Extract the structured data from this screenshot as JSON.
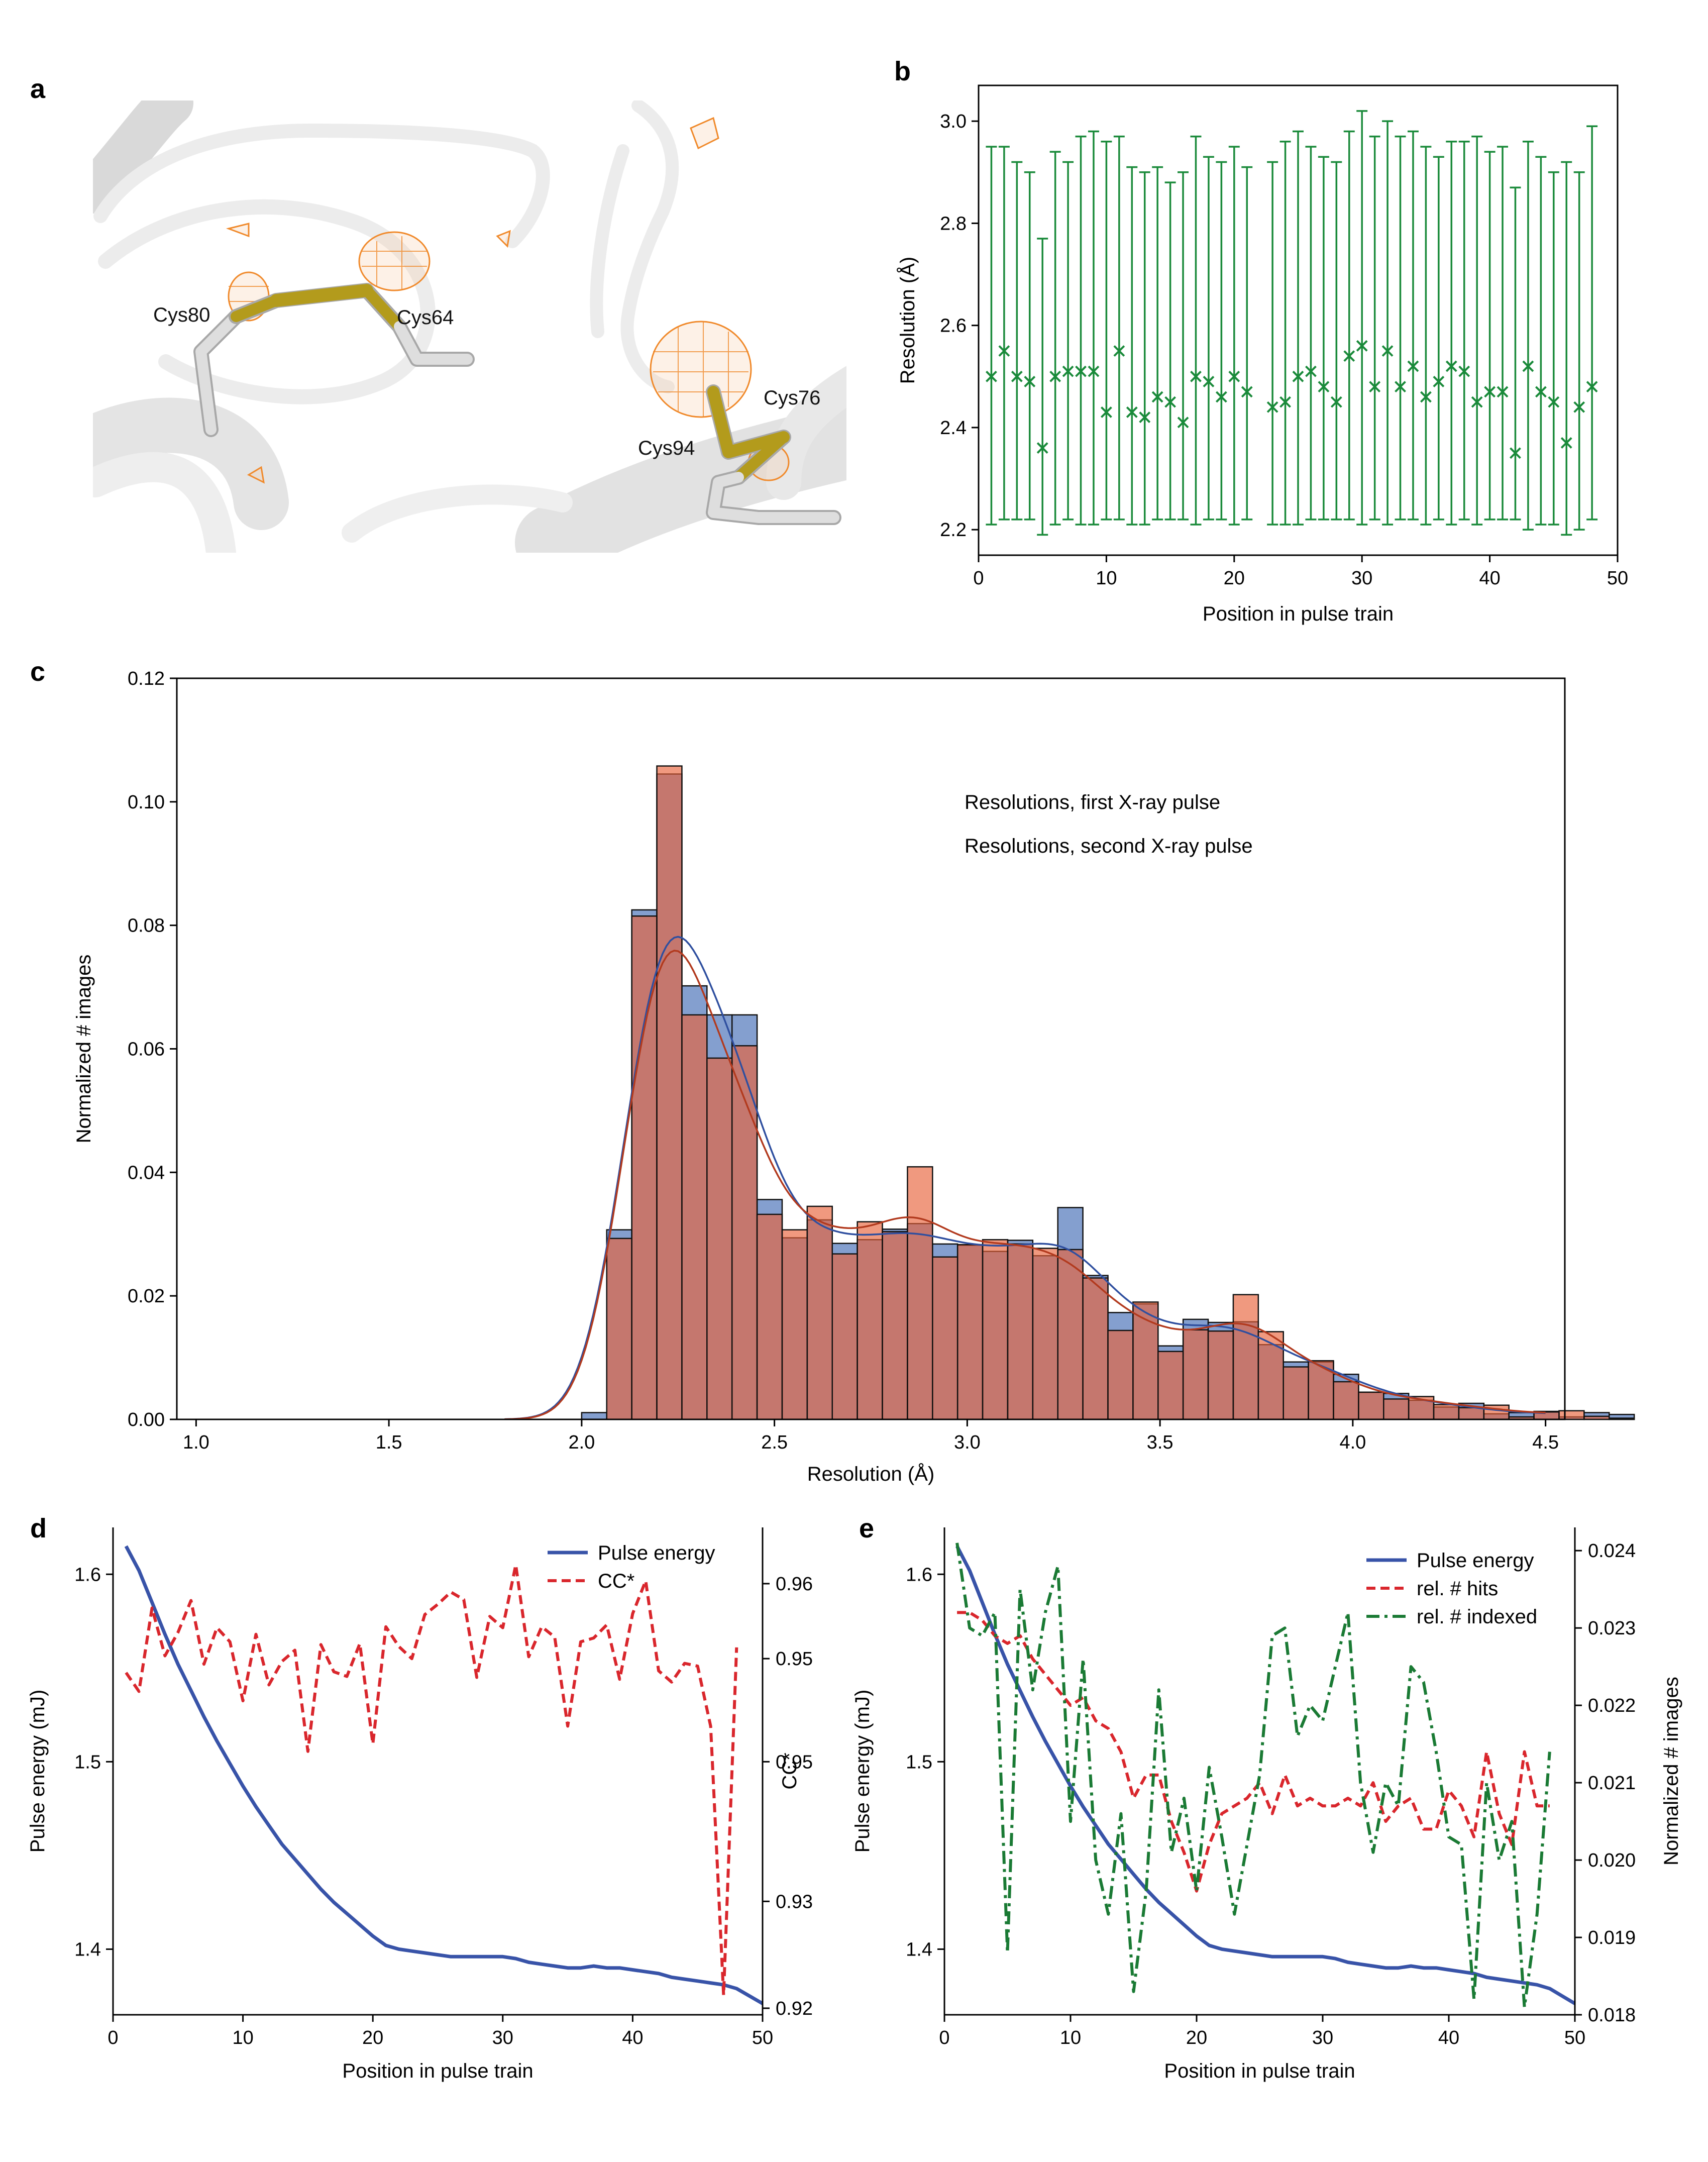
{
  "panel_labels": {
    "a": "a",
    "b": "b",
    "c": "c",
    "d": "d",
    "e": "e"
  },
  "structure": {
    "residues": [
      "Cys80",
      "Cys64",
      "Cys76",
      "Cys94"
    ],
    "colors": {
      "ribbon": "#e6e6e6",
      "sulfur": "#b39b1c",
      "carbon": "#d0d0d0",
      "density": "#f08a2c"
    }
  },
  "chart_data": [
    {
      "panel": "b",
      "type": "scatter",
      "xlabel": "Position in pulse train",
      "ylabel": "Resolution (Å)",
      "xlim": [
        0,
        50
      ],
      "ylim": [
        2.15,
        3.07
      ],
      "xticks": [
        "0",
        "10",
        "20",
        "30",
        "40",
        "50"
      ],
      "yticks": [
        "2.2",
        "2.4",
        "2.6",
        "2.8",
        "3.0"
      ],
      "color": "#1a8a3a",
      "marker": "x",
      "x": [
        1,
        2,
        3,
        4,
        5,
        6,
        7,
        8,
        9,
        10,
        11,
        12,
        13,
        14,
        15,
        16,
        17,
        18,
        19,
        20,
        21,
        23,
        24,
        25,
        26,
        27,
        28,
        29,
        30,
        31,
        32,
        33,
        34,
        35,
        36,
        37,
        38,
        39,
        40,
        41,
        42,
        43,
        44,
        45,
        46,
        47,
        48
      ],
      "y": [
        2.5,
        2.55,
        2.5,
        2.49,
        2.36,
        2.5,
        2.51,
        2.51,
        2.51,
        2.43,
        2.55,
        2.43,
        2.42,
        2.46,
        2.45,
        2.41,
        2.5,
        2.49,
        2.46,
        2.5,
        2.47,
        2.44,
        2.45,
        2.5,
        2.51,
        2.48,
        2.45,
        2.54,
        2.56,
        2.48,
        2.55,
        2.48,
        2.52,
        2.46,
        2.49,
        2.52,
        2.51,
        2.45,
        2.47,
        2.47,
        2.35,
        2.52,
        2.47,
        2.45,
        2.37,
        2.44,
        2.48
      ],
      "upper": [
        2.95,
        2.95,
        2.92,
        2.9,
        2.77,
        2.94,
        2.92,
        2.97,
        2.98,
        2.96,
        2.97,
        2.91,
        2.9,
        2.91,
        2.88,
        2.9,
        2.97,
        2.93,
        2.92,
        2.95,
        2.91,
        2.92,
        2.96,
        2.98,
        2.95,
        2.93,
        2.92,
        2.98,
        3.02,
        2.97,
        3.0,
        2.97,
        2.98,
        2.95,
        2.93,
        2.96,
        2.96,
        2.97,
        2.94,
        2.95,
        2.87,
        2.96,
        2.93,
        2.9,
        2.92,
        2.9,
        2.99
      ],
      "lower": [
        2.21,
        2.22,
        2.22,
        2.22,
        2.19,
        2.21,
        2.22,
        2.21,
        2.21,
        2.22,
        2.22,
        2.21,
        2.21,
        2.22,
        2.22,
        2.22,
        2.21,
        2.22,
        2.22,
        2.21,
        2.22,
        2.21,
        2.21,
        2.21,
        2.22,
        2.22,
        2.22,
        2.22,
        2.21,
        2.22,
        2.21,
        2.22,
        2.22,
        2.21,
        2.22,
        2.21,
        2.22,
        2.21,
        2.22,
        2.22,
        2.22,
        2.2,
        2.21,
        2.21,
        2.19,
        2.2,
        2.22
      ]
    },
    {
      "panel": "c",
      "type": "bar",
      "subtype": "histogram",
      "xlabel": "Resolution (Å)",
      "ylabel": "Normalized # images",
      "xlim": [
        0.95,
        4.55
      ],
      "ylim": [
        0,
        0.12
      ],
      "xticks": [
        "1.0",
        "1.5",
        "2.0",
        "2.5",
        "3.0",
        "3.5",
        "4.0",
        "4.5"
      ],
      "yticks": [
        "0.00",
        "0.02",
        "0.04",
        "0.06",
        "0.08",
        "0.10",
        "0.12"
      ],
      "bin_start": 2.0,
      "bin_width": 0.065,
      "legend_position": "top-right",
      "series": [
        {
          "name": "Resolutions, first X-ray pulse",
          "color": "#5b7fbf",
          "values": [
            0.0011,
            0.0307,
            0.0825,
            0.1045,
            0.0702,
            0.0655,
            0.0655,
            0.0356,
            0.0294,
            0.0323,
            0.0285,
            0.0291,
            0.0308,
            0.0317,
            0.0284,
            0.0282,
            0.0272,
            0.029,
            0.0265,
            0.0343,
            0.0233,
            0.0173,
            0.0187,
            0.0119,
            0.0162,
            0.0157,
            0.0158,
            0.0121,
            0.0093,
            0.0093,
            0.0073,
            0.0044,
            0.0042,
            0.0031,
            0.002,
            0.0026,
            0.0009,
            0.0011,
            0.0013,
            0.0004,
            0.0011,
            0.0008
          ]
        },
        {
          "name": "Resolutions, second X-ray pulse",
          "color": "#e8633a",
          "values": [
            0.0,
            0.0293,
            0.0815,
            0.1058,
            0.0655,
            0.0585,
            0.0605,
            0.0332,
            0.0307,
            0.0345,
            0.0268,
            0.032,
            0.0304,
            0.0409,
            0.0263,
            0.0283,
            0.0291,
            0.0284,
            0.0277,
            0.0275,
            0.0229,
            0.0144,
            0.019,
            0.011,
            0.0145,
            0.0143,
            0.0202,
            0.0142,
            0.0085,
            0.0095,
            0.0061,
            0.0044,
            0.0033,
            0.0037,
            0.0024,
            0.0019,
            0.0023,
            0.0004,
            0.0012,
            0.0014,
            0.0005,
            0.0002
          ]
        }
      ]
    },
    {
      "panel": "d",
      "type": "line",
      "xlabel": "Position in pulse train",
      "ylabel": "Pulse energy (mJ)",
      "y2label": "CC*",
      "xlim": [
        0,
        50
      ],
      "ylim": [
        1.365,
        1.625
      ],
      "y2lim": [
        0.92,
        0.972
      ],
      "xticks": [
        "0",
        "10",
        "20",
        "30",
        "40",
        "50"
      ],
      "yticks": [
        "1.4",
        "1.5",
        "1.6"
      ],
      "y2ticks": [
        "0.92",
        "0.93",
        "0.95",
        "0.95",
        "0.96"
      ],
      "legend_position": "top-right",
      "series": [
        {
          "name": "Pulse energy",
          "color": "#3853a8",
          "style": "solid",
          "axis": "left",
          "x": [
            1,
            2,
            3,
            4,
            5,
            6,
            7,
            8,
            9,
            10,
            11,
            12,
            13,
            14,
            15,
            16,
            17,
            18,
            19,
            20,
            21,
            22,
            23,
            24,
            25,
            26,
            27,
            28,
            29,
            30,
            31,
            32,
            33,
            34,
            35,
            36,
            37,
            38,
            39,
            40,
            41,
            42,
            43,
            44,
            45,
            46,
            47,
            48,
            49,
            50
          ],
          "y": [
            1.615,
            1.602,
            1.585,
            1.568,
            1.552,
            1.538,
            1.524,
            1.511,
            1.499,
            1.487,
            1.476,
            1.466,
            1.456,
            1.448,
            1.44,
            1.432,
            1.425,
            1.419,
            1.413,
            1.407,
            1.402,
            1.4,
            1.399,
            1.398,
            1.397,
            1.396,
            1.396,
            1.396,
            1.396,
            1.396,
            1.395,
            1.393,
            1.392,
            1.391,
            1.39,
            1.39,
            1.391,
            1.39,
            1.39,
            1.389,
            1.388,
            1.387,
            1.385,
            1.384,
            1.383,
            1.382,
            1.381,
            1.379,
            1.375,
            1.371
          ]
        },
        {
          "name": "CC*",
          "color": "#d9262c",
          "style": "dashed",
          "axis": "right",
          "x": [
            1,
            2,
            3,
            4,
            5,
            6,
            7,
            8,
            9,
            10,
            11,
            12,
            13,
            14,
            15,
            16,
            17,
            18,
            19,
            20,
            21,
            22,
            23,
            24,
            25,
            26,
            27,
            28,
            29,
            30,
            31,
            32,
            33,
            34,
            35,
            36,
            37,
            38,
            39,
            40,
            41,
            42,
            43,
            44,
            45,
            46,
            47,
            48
          ],
          "y": [
            0.9565,
            0.9545,
            0.9634,
            0.9583,
            0.9608,
            0.9642,
            0.9574,
            0.9613,
            0.9598,
            0.9535,
            0.9606,
            0.9552,
            0.9577,
            0.9589,
            0.9481,
            0.9595,
            0.9566,
            0.9561,
            0.9596,
            0.9489,
            0.9614,
            0.9593,
            0.958,
            0.9627,
            0.9638,
            0.9651,
            0.9643,
            0.956,
            0.9625,
            0.9613,
            0.968,
            0.9582,
            0.9614,
            0.9603,
            0.9508,
            0.9598,
            0.9602,
            0.9616,
            0.9558,
            0.9628,
            0.9663,
            0.9567,
            0.9555,
            0.9575,
            0.9572,
            0.9508,
            0.9221,
            0.9592
          ]
        }
      ]
    },
    {
      "panel": "e",
      "type": "line",
      "xlabel": "Position in pulse train",
      "ylabel": "Pulse energy (mJ)",
      "y2label": "Normalized # images",
      "xlim": [
        0,
        50
      ],
      "ylim": [
        1.365,
        1.625
      ],
      "y2lim": [
        0.018,
        0.0243
      ],
      "xticks": [
        "0",
        "10",
        "20",
        "30",
        "40",
        "50"
      ],
      "yticks": [
        "1.4",
        "1.5",
        "1.6"
      ],
      "y2ticks": [
        "0.018",
        "0.019",
        "0.020",
        "0.021",
        "0.022",
        "0.023",
        "0.024"
      ],
      "legend_position": "top-right",
      "series": [
        {
          "name": "Pulse energy",
          "color": "#3853a8",
          "style": "solid",
          "axis": "left",
          "x": [
            1,
            2,
            3,
            4,
            5,
            6,
            7,
            8,
            9,
            10,
            11,
            12,
            13,
            14,
            15,
            16,
            17,
            18,
            19,
            20,
            21,
            22,
            23,
            24,
            25,
            26,
            27,
            28,
            29,
            30,
            31,
            32,
            33,
            34,
            35,
            36,
            37,
            38,
            39,
            40,
            41,
            42,
            43,
            44,
            45,
            46,
            47,
            48,
            49,
            50
          ],
          "y": [
            1.615,
            1.602,
            1.585,
            1.568,
            1.552,
            1.538,
            1.524,
            1.511,
            1.499,
            1.487,
            1.476,
            1.466,
            1.456,
            1.448,
            1.44,
            1.432,
            1.425,
            1.419,
            1.413,
            1.407,
            1.402,
            1.4,
            1.399,
            1.398,
            1.397,
            1.396,
            1.396,
            1.396,
            1.396,
            1.396,
            1.395,
            1.393,
            1.392,
            1.391,
            1.39,
            1.39,
            1.391,
            1.39,
            1.39,
            1.389,
            1.388,
            1.387,
            1.385,
            1.384,
            1.383,
            1.382,
            1.381,
            1.379,
            1.375,
            1.371
          ]
        },
        {
          "name": "rel. # hits",
          "color": "#d9262c",
          "style": "dashed",
          "axis": "right",
          "x": [
            1,
            2,
            3,
            4,
            5,
            6,
            7,
            8,
            9,
            10,
            11,
            12,
            13,
            14,
            15,
            16,
            17,
            18,
            19,
            20,
            21,
            22,
            23,
            24,
            25,
            26,
            27,
            28,
            29,
            30,
            31,
            32,
            33,
            34,
            35,
            36,
            37,
            38,
            39,
            40,
            41,
            42,
            43,
            44,
            45,
            46,
            47,
            48
          ],
          "y": [
            0.0232,
            0.0232,
            0.0231,
            0.0229,
            0.0228,
            0.0229,
            0.0226,
            0.0224,
            0.0222,
            0.022,
            0.0221,
            0.0218,
            0.0217,
            0.0214,
            0.0208,
            0.0211,
            0.0211,
            0.0205,
            0.0201,
            0.0196,
            0.0202,
            0.0206,
            0.0207,
            0.0208,
            0.021,
            0.0206,
            0.0211,
            0.0207,
            0.0208,
            0.0207,
            0.0207,
            0.0208,
            0.0207,
            0.021,
            0.0205,
            0.0207,
            0.0208,
            0.0204,
            0.0204,
            0.0209,
            0.0207,
            0.0203,
            0.0214,
            0.0206,
            0.0202,
            0.0214,
            0.0207,
            0.0207
          ]
        },
        {
          "name": "rel. # indexed",
          "color": "#1a7a34",
          "style": "dashdot",
          "axis": "right",
          "x": [
            1,
            2,
            3,
            4,
            5,
            6,
            7,
            8,
            9,
            10,
            11,
            12,
            13,
            14,
            15,
            16,
            17,
            18,
            19,
            20,
            21,
            22,
            23,
            24,
            25,
            26,
            27,
            28,
            29,
            30,
            31,
            32,
            33,
            34,
            35,
            36,
            37,
            38,
            39,
            40,
            41,
            42,
            43,
            44,
            45,
            46,
            47,
            48
          ],
          "y": [
            0.0241,
            0.023,
            0.0229,
            0.0232,
            0.0188,
            0.0235,
            0.0222,
            0.0232,
            0.0238,
            0.0205,
            0.0226,
            0.02,
            0.0193,
            0.0206,
            0.0183,
            0.0196,
            0.0222,
            0.0201,
            0.0208,
            0.0196,
            0.0212,
            0.0203,
            0.0193,
            0.0202,
            0.0211,
            0.0229,
            0.023,
            0.0216,
            0.022,
            0.0218,
            0.0225,
            0.0232,
            0.021,
            0.0201,
            0.021,
            0.0207,
            0.0225,
            0.0223,
            0.0214,
            0.0203,
            0.0202,
            0.0182,
            0.021,
            0.02,
            0.0205,
            0.0181,
            0.0193,
            0.0214
          ]
        }
      ]
    }
  ]
}
